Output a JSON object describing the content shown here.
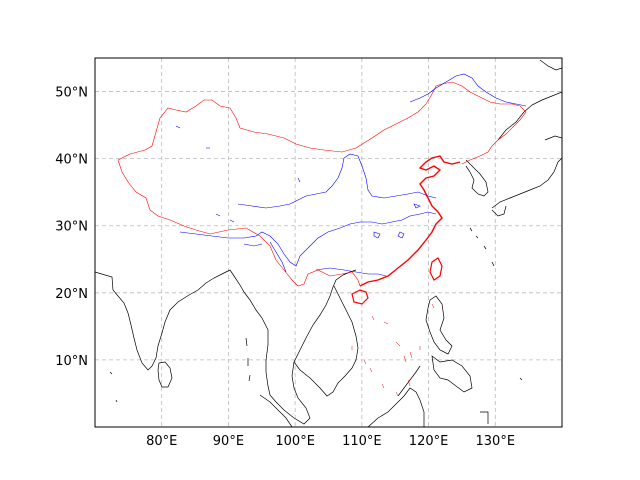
{
  "map": {
    "projection": "PlateCarree",
    "extent": {
      "lon_min": 70,
      "lon_max": 140,
      "lat_min": 0,
      "lat_max": 55
    },
    "gridlines": {
      "style": "dashed",
      "color": "#bbbbbb"
    },
    "lon_ticks": [
      {
        "value": 80,
        "label": "80°E"
      },
      {
        "value": 90,
        "label": "90°E"
      },
      {
        "value": 100,
        "label": "100°E"
      },
      {
        "value": 110,
        "label": "110°E"
      },
      {
        "value": 120,
        "label": "120°E"
      },
      {
        "value": 130,
        "label": "130°E"
      }
    ],
    "lat_ticks": [
      {
        "value": 10,
        "label": "10°N"
      },
      {
        "value": 20,
        "label": "20°N"
      },
      {
        "value": 30,
        "label": "30°N"
      },
      {
        "value": 40,
        "label": "40°N"
      },
      {
        "value": 50,
        "label": "50°N"
      }
    ],
    "layers": [
      {
        "name": "coastline",
        "color": "#000000"
      },
      {
        "name": "china-border",
        "color": "#ff0000"
      },
      {
        "name": "china-coast",
        "color": "#ff0000"
      },
      {
        "name": "rivers",
        "color": "#0000ff"
      },
      {
        "name": "south-china-sea-islands",
        "color": "#ff0000"
      }
    ]
  }
}
